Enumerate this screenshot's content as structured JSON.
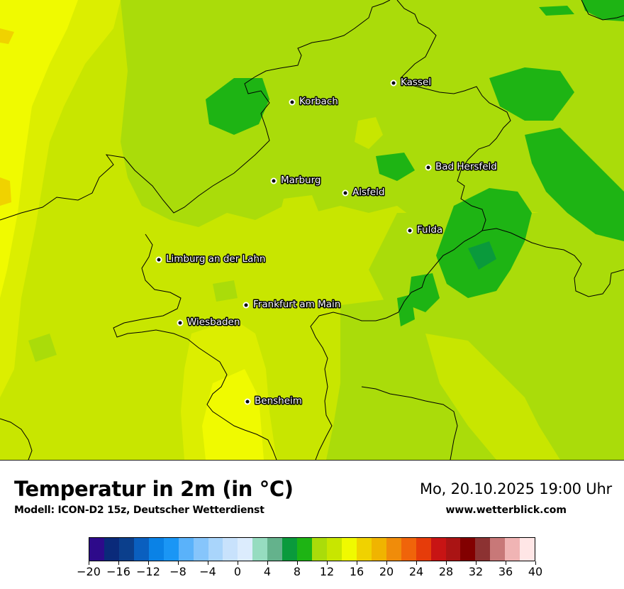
{
  "map": {
    "cities": [
      {
        "name": "Kassel"
      },
      {
        "name": "Korbach"
      },
      {
        "name": "Bad Hersfeld"
      },
      {
        "name": "Marburg"
      },
      {
        "name": "Alsfeld"
      },
      {
        "name": "Fulda"
      },
      {
        "name": "Limburg an der Lahn"
      },
      {
        "name": "Frankfurt am Main"
      },
      {
        "name": "Wiesbaden"
      },
      {
        "name": "Bensheim"
      }
    ]
  },
  "footer": {
    "title": "Temperatur in 2m (in °C)",
    "subtitle": "Modell: ICON-D2 15z, Deutscher Wetterdienst",
    "datetime": "Mo, 20.10.2025 19:00 Uhr",
    "website": "www.wetterblick.com"
  },
  "legend": {
    "colors": [
      "#2d0a8a",
      "#0a2a7a",
      "#0b3f8c",
      "#0a5fbf",
      "#0a82e6",
      "#1a96f5",
      "#5ab2fa",
      "#86c5fb",
      "#a9d5fb",
      "#c8e2fc",
      "#dcecfd",
      "#96dcc0",
      "#64b28c",
      "#0a9a3c",
      "#1eb414",
      "#aadc0a",
      "#c8e600",
      "#f0fa00",
      "#f0d200",
      "#f0b400",
      "#f08c0a",
      "#f0640a",
      "#e63c0a",
      "#c81414",
      "#aa1414",
      "#820000",
      "#8c3232",
      "#c87878",
      "#f0b4b4",
      "#ffe6e6"
    ],
    "ticks": [
      "−20",
      "−16",
      "−12",
      "−8",
      "−4",
      "0",
      "4",
      "8",
      "12",
      "16",
      "20",
      "24",
      "28",
      "32",
      "36",
      "40"
    ]
  }
}
